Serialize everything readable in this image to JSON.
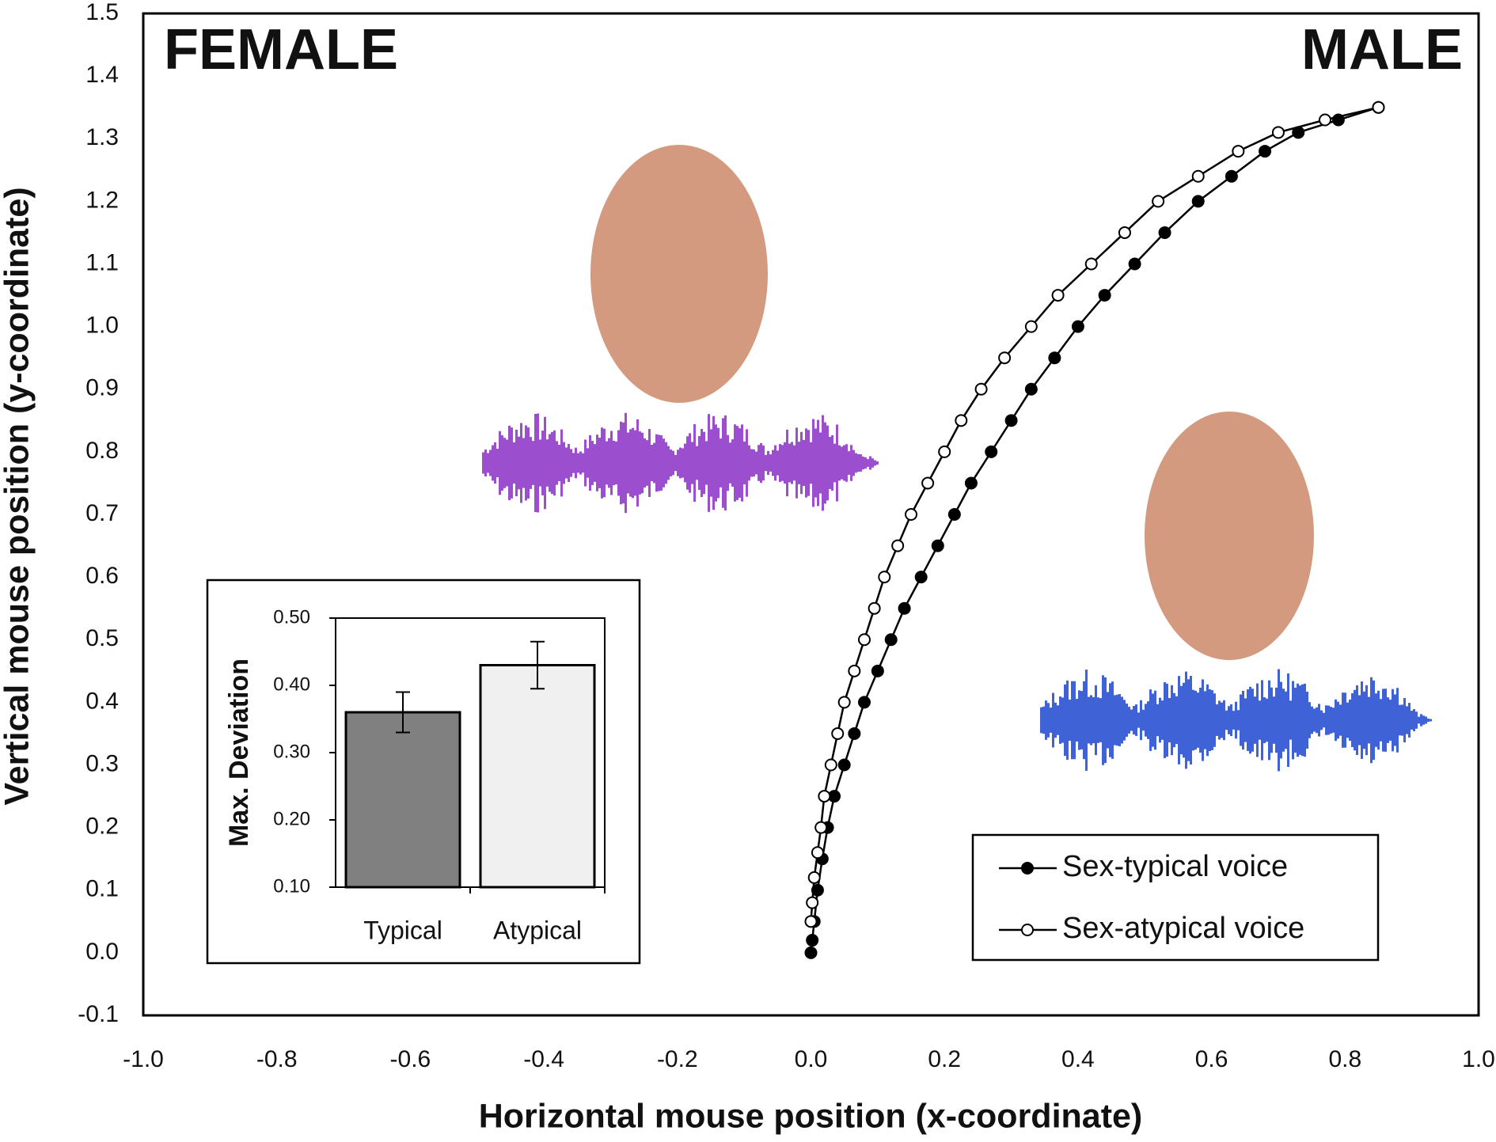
{
  "chart_data": [
    {
      "type": "line",
      "labels": {
        "left": "FEMALE",
        "right": "MALE"
      },
      "xlabel": "Horizontal mouse position (x-coordinate)",
      "ylabel": "Vertical mouse position (y-coordinate)",
      "xlim": [
        -1.0,
        1.0
      ],
      "xticks": [
        {
          "value": -1.0,
          "label": "-1.0"
        },
        -0.8,
        -0.6,
        -0.4,
        -0.2,
        {
          "value": 0,
          "label": "0.0"
        },
        0.2,
        0.4,
        0.6,
        0.8,
        {
          "value": 1.0,
          "label": "1.0"
        }
      ],
      "ylim": [
        -0.1,
        1.5
      ],
      "yticks": [
        -0.1,
        {
          "value": 0,
          "label": "0.0"
        },
        0.1,
        0.2,
        0.3,
        0.4,
        0.5,
        0.6,
        0.7,
        0.8,
        0.9,
        {
          "value": 1.0,
          "label": "1.0"
        },
        1.1,
        1.2,
        1.3,
        1.4,
        1.5
      ],
      "grid": false,
      "legend": "lower right",
      "series": [
        {
          "name": "Sex-typical voice",
          "color": "#000000",
          "fill": "#000000",
          "x": [
            0,
            0.002,
            0.005,
            0.01,
            0.017,
            0.025,
            0.035,
            0.05,
            0.065,
            0.08,
            0.1,
            0.12,
            0.14,
            0.165,
            0.19,
            0.215,
            0.24,
            0.27,
            0.3,
            0.33,
            0.365,
            0.4,
            0.44,
            0.485,
            0.53,
            0.58,
            0.63,
            0.68,
            0.73,
            0.79,
            0.85
          ],
          "values": [
            0,
            0.02,
            0.05,
            0.1,
            0.15,
            0.2,
            0.25,
            0.3,
            0.35,
            0.4,
            0.45,
            0.5,
            0.55,
            0.6,
            0.65,
            0.7,
            0.75,
            0.8,
            0.85,
            0.9,
            0.95,
            1.0,
            1.05,
            1.1,
            1.15,
            1.2,
            1.24,
            1.28,
            1.31,
            1.33,
            1.35
          ]
        },
        {
          "name": "Sex-atypical voice",
          "color": "#000000",
          "fill": "#ffffff",
          "x": [
            0,
            0.002,
            0.005,
            0.01,
            0.015,
            0.02,
            0.03,
            0.04,
            0.05,
            0.065,
            0.08,
            0.095,
            0.11,
            0.13,
            0.15,
            0.175,
            0.2,
            0.225,
            0.255,
            0.29,
            0.33,
            0.37,
            0.42,
            0.47,
            0.52,
            0.58,
            0.64,
            0.7,
            0.77,
            0.85
          ],
          "values": [
            0.05,
            0.08,
            0.12,
            0.16,
            0.2,
            0.25,
            0.3,
            0.35,
            0.4,
            0.45,
            0.5,
            0.55,
            0.6,
            0.65,
            0.7,
            0.75,
            0.8,
            0.85,
            0.9,
            0.95,
            1.0,
            1.05,
            1.1,
            1.15,
            1.2,
            1.24,
            1.28,
            1.31,
            1.33,
            1.35
          ]
        }
      ]
    },
    {
      "type": "bar",
      "ylabel": "Max. Deviation",
      "categories": [
        "Typical",
        "Atypical"
      ],
      "values": [
        0.36,
        0.43
      ],
      "errors": [
        0.03,
        0.035
      ],
      "colors": [
        "#808080",
        "#f0f0f0"
      ],
      "ylim": [
        0.1,
        0.5
      ],
      "yticks": [
        {
          "value": 0.1,
          "label": "0.10"
        },
        {
          "value": 0.2,
          "label": "0.20"
        },
        {
          "value": 0.3,
          "label": "0.30"
        },
        {
          "value": 0.4,
          "label": "0.40"
        },
        {
          "value": 0.5,
          "label": "0.50"
        }
      ]
    }
  ]
}
